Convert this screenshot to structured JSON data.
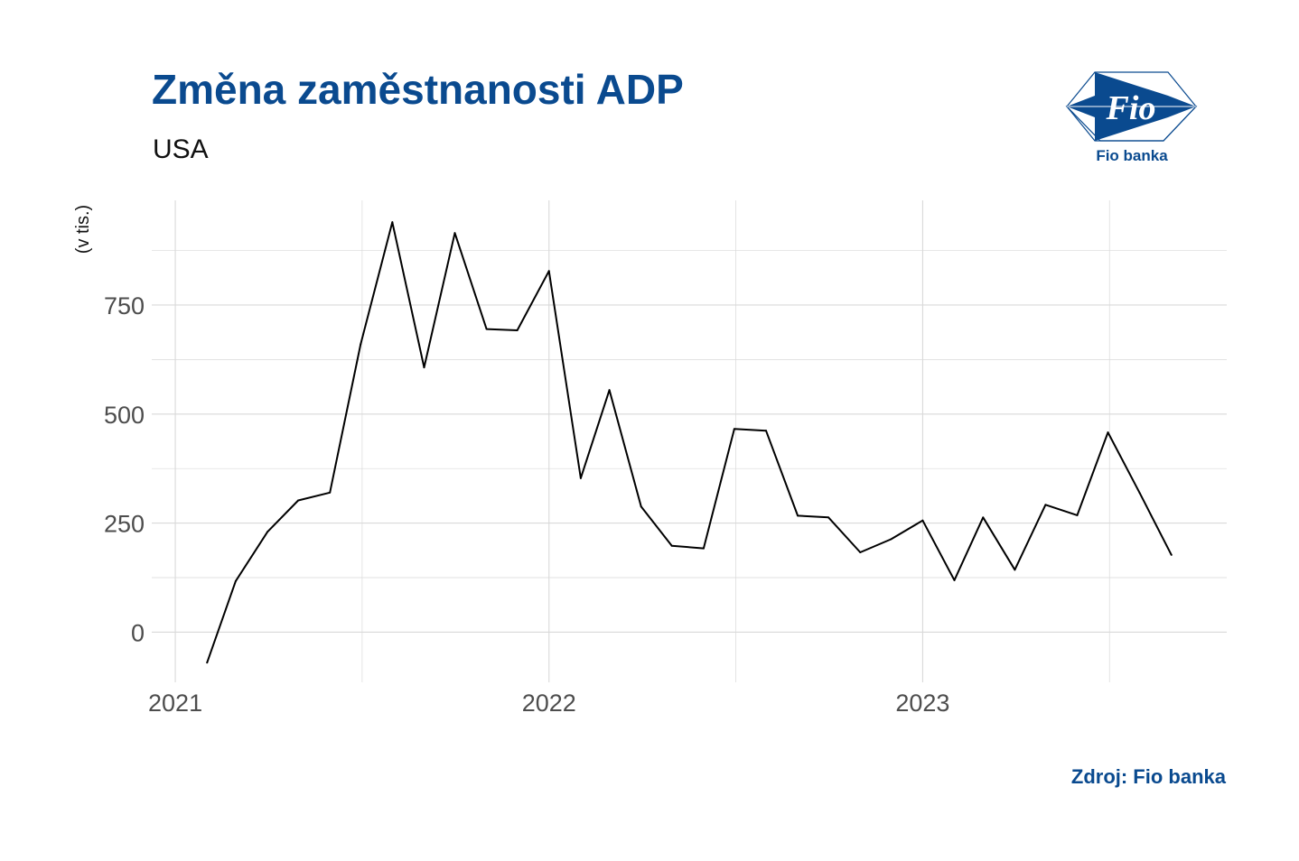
{
  "header": {
    "title": "Změna zaměstnanosti ADP",
    "subtitle": "USA"
  },
  "logo": {
    "mark_text": "Fio",
    "name": "Fio banka",
    "color": "#0a4a8f"
  },
  "footer": {
    "source": "Zdroj: Fio banka"
  },
  "colors": {
    "title": "#0a4a8f",
    "line": "#000000",
    "grid": "#d9d9d9"
  },
  "chart_data": {
    "type": "line",
    "title": "Změna zaměstnanosti ADP",
    "subtitle": "USA",
    "ylabel": "(v tis.)",
    "xlabel": "",
    "grid": true,
    "legend": "none",
    "ylim": [
      -115,
      990
    ],
    "yticks": [
      0,
      250,
      500,
      750
    ],
    "xlim": [
      "2020-12-09",
      "2023-10-25"
    ],
    "xticks": [
      "2021-01-01",
      "2022-01-01",
      "2023-01-01"
    ],
    "xtick_labels": [
      "2021",
      "2022",
      "2023"
    ],
    "series": [
      {
        "x": [
          "2021-02-01",
          "2021-03-01",
          "2021-04-01",
          "2021-05-01",
          "2021-06-01",
          "2021-07-01",
          "2021-08-01",
          "2021-09-01",
          "2021-10-01",
          "2021-11-01",
          "2021-12-01",
          "2022-01-01",
          "2022-02-01",
          "2022-03-01",
          "2022-04-01",
          "2022-05-01",
          "2022-06-01",
          "2022-07-01",
          "2022-08-01",
          "2022-09-01",
          "2022-10-01",
          "2022-11-01",
          "2022-12-01",
          "2023-01-01",
          "2023-02-01",
          "2023-03-01",
          "2023-04-01",
          "2023-05-01",
          "2023-06-01",
          "2023-07-01",
          "2023-08-01",
          "2023-09-01"
        ],
        "values": [
          -70,
          117,
          230,
          302,
          320,
          660,
          940,
          607,
          915,
          695,
          692,
          828,
          353,
          555,
          288,
          198,
          192,
          466,
          462,
          267,
          263,
          183,
          213,
          256,
          119,
          263,
          143,
          292,
          268,
          458,
          319,
          177
        ]
      }
    ]
  }
}
